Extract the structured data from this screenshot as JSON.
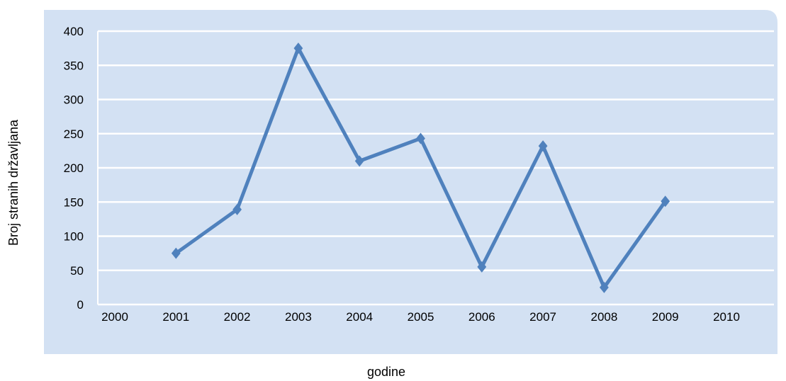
{
  "chart_data": {
    "type": "line",
    "title": "",
    "xlabel": "godine",
    "ylabel": "Broj stranih državljana",
    "categories": [
      "2000",
      "2001",
      "2002",
      "2003",
      "2004",
      "2005",
      "2006",
      "2007",
      "2008",
      "2009",
      "2010"
    ],
    "series": [
      {
        "values": [
          null,
          75,
          139,
          375,
          210,
          243,
          55,
          232,
          25,
          151,
          null
        ]
      }
    ],
    "ylim": [
      0,
      400
    ],
    "yticks": [
      "0",
      "50",
      "100",
      "150",
      "200",
      "250",
      "300",
      "350",
      "400"
    ],
    "grid": true,
    "legend": "none",
    "colors": {
      "plot_background": "#d3e1f3",
      "line": "#4f81bd",
      "gridline": "#ffffff"
    }
  }
}
